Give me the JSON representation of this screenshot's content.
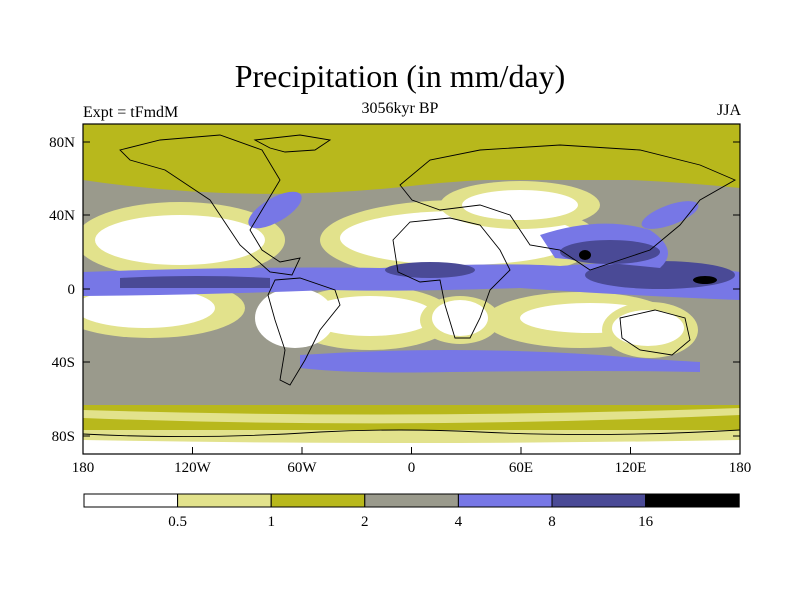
{
  "title": "Precipitation (in mm/day)",
  "subtitle": "3056kyr BP",
  "left_label": "Expt = tFmdM",
  "right_label": "JJA",
  "lat_ticks": [
    "80N",
    "40N",
    "0",
    "40S",
    "80S"
  ],
  "lon_ticks": [
    "180",
    "120W",
    "60W",
    "0",
    "60E",
    "120E",
    "180"
  ],
  "colorbar": {
    "colors": [
      "#ffffff",
      "#e2e28c",
      "#b8b81c",
      "#9a9a8c",
      "#7777e6",
      "#4a4a96",
      "#000000"
    ],
    "labels": [
      "0.5",
      "1",
      "2",
      "4",
      "8",
      "16"
    ]
  },
  "colors": {
    "ocean_base": "#9a9a8c",
    "high_lat": "#b8b81c",
    "dry": "#ffffff",
    "light": "#e2e28c",
    "wet": "#7777e6",
    "very_wet": "#4a4a96",
    "coast": "#000000"
  }
}
